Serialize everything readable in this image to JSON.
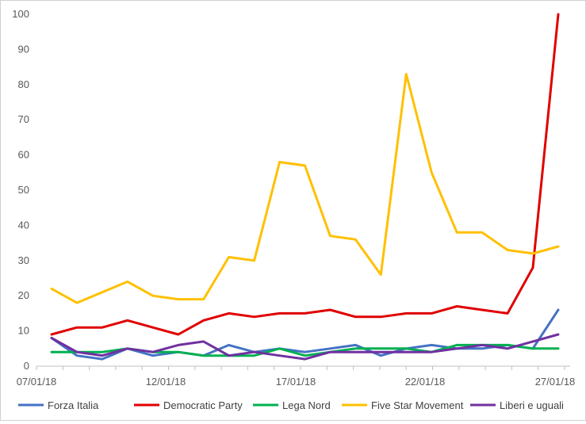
{
  "chart_data": {
    "type": "line",
    "title": "",
    "xlabel": "",
    "ylabel": "",
    "ylim": [
      0,
      100
    ],
    "y_ticks": [
      0,
      10,
      20,
      30,
      40,
      50,
      60,
      70,
      80,
      90,
      100
    ],
    "x": [
      "07/01/18",
      "08/01/18",
      "09/01/18",
      "10/01/18",
      "11/01/18",
      "12/01/18",
      "13/01/18",
      "14/01/18",
      "15/01/18",
      "16/01/18",
      "17/01/18",
      "18/01/18",
      "19/01/18",
      "20/01/18",
      "21/01/18",
      "22/01/18",
      "23/01/18",
      "24/01/18",
      "25/01/18",
      "26/01/18",
      "27/01/18"
    ],
    "x_tick_labels": [
      "07/01/18",
      "12/01/18",
      "17/01/18",
      "22/01/18",
      "27/01/18"
    ],
    "grid": false,
    "legend_position": "bottom",
    "series": [
      {
        "name": "Forza Italia",
        "color": "#4472C4",
        "values": [
          8,
          3,
          2,
          5,
          3,
          4,
          3,
          6,
          4,
          5,
          4,
          5,
          6,
          3,
          5,
          6,
          5,
          5,
          6,
          5,
          16
        ]
      },
      {
        "name": "Democratic Party",
        "color": "#E00000",
        "values": [
          9,
          11,
          11,
          13,
          11,
          9,
          13,
          15,
          14,
          15,
          15,
          16,
          14,
          14,
          15,
          15,
          17,
          16,
          15,
          28,
          100
        ]
      },
      {
        "name": "Lega Nord",
        "color": "#00B050",
        "values": [
          4,
          4,
          4,
          5,
          4,
          4,
          3,
          3,
          3,
          5,
          3,
          4,
          5,
          5,
          5,
          4,
          6,
          6,
          6,
          5,
          5
        ]
      },
      {
        "name": "Five Star Movement",
        "color": "#FFC000",
        "values": [
          22,
          18,
          21,
          24,
          20,
          19,
          19,
          31,
          30,
          58,
          57,
          37,
          36,
          26,
          83,
          55,
          38,
          38,
          33,
          32,
          34
        ]
      },
      {
        "name": "Liberi e uguali",
        "color": "#7030A0",
        "values": [
          8,
          4,
          3,
          5,
          4,
          6,
          7,
          3,
          4,
          3,
          2,
          4,
          4,
          4,
          4,
          4,
          5,
          6,
          5,
          7,
          9
        ]
      }
    ]
  }
}
